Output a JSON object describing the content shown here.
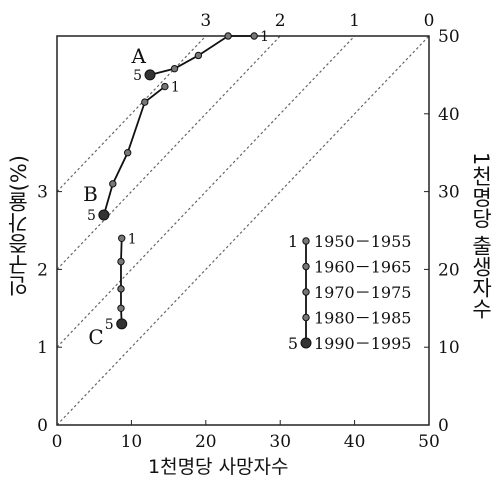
{
  "chart_data": {
    "type": "line",
    "xlabel": "1천명당 사망자수",
    "ylabel_left": "인구증가율(%)",
    "ylabel_right": "1천명당 출생자수",
    "xlim": [
      0,
      50
    ],
    "ylim_right": [
      0,
      50
    ],
    "ylim_left": [
      0,
      5
    ],
    "x_ticks": [
      "0",
      "10",
      "20",
      "30",
      "40",
      "50"
    ],
    "y_right_ticks": [
      "0",
      "10",
      "20",
      "30",
      "40",
      "50"
    ],
    "y_left_ticks": [
      "0",
      "1",
      "2",
      "3"
    ],
    "top_ticks": [
      "3",
      "2",
      "1",
      "0"
    ],
    "diagonal_offsets": [
      0,
      10,
      20,
      30
    ],
    "series": [
      {
        "name": "A",
        "points": [
          {
            "death": 26.5,
            "birth": 50.0,
            "label": "1"
          },
          {
            "death": 23.0,
            "birth": 50.0
          },
          {
            "death": 19.0,
            "birth": 47.5
          },
          {
            "death": 15.8,
            "birth": 45.8
          },
          {
            "death": 12.5,
            "birth": 45.0,
            "label": "5"
          }
        ]
      },
      {
        "name": "B",
        "points": [
          {
            "death": 14.5,
            "birth": 43.5,
            "label": "1"
          },
          {
            "death": 11.8,
            "birth": 41.5
          },
          {
            "death": 9.5,
            "birth": 35.0
          },
          {
            "death": 7.5,
            "birth": 31.0
          },
          {
            "death": 6.3,
            "birth": 27.0,
            "label": "5"
          }
        ]
      },
      {
        "name": "C",
        "points": [
          {
            "death": 8.7,
            "birth": 24.0,
            "label": "1"
          },
          {
            "death": 8.6,
            "birth": 21.0
          },
          {
            "death": 8.6,
            "birth": 17.5
          },
          {
            "death": 8.6,
            "birth": 15.0
          },
          {
            "death": 8.7,
            "birth": 13.0,
            "label": "5"
          }
        ]
      }
    ],
    "legend": [
      {
        "num": "1",
        "period": "1950－1955"
      },
      {
        "num": "",
        "period": "1960－1965"
      },
      {
        "num": "",
        "period": "1970－1975"
      },
      {
        "num": "",
        "period": "1980－1985"
      },
      {
        "num": "5",
        "period": "1990－1995"
      }
    ]
  }
}
